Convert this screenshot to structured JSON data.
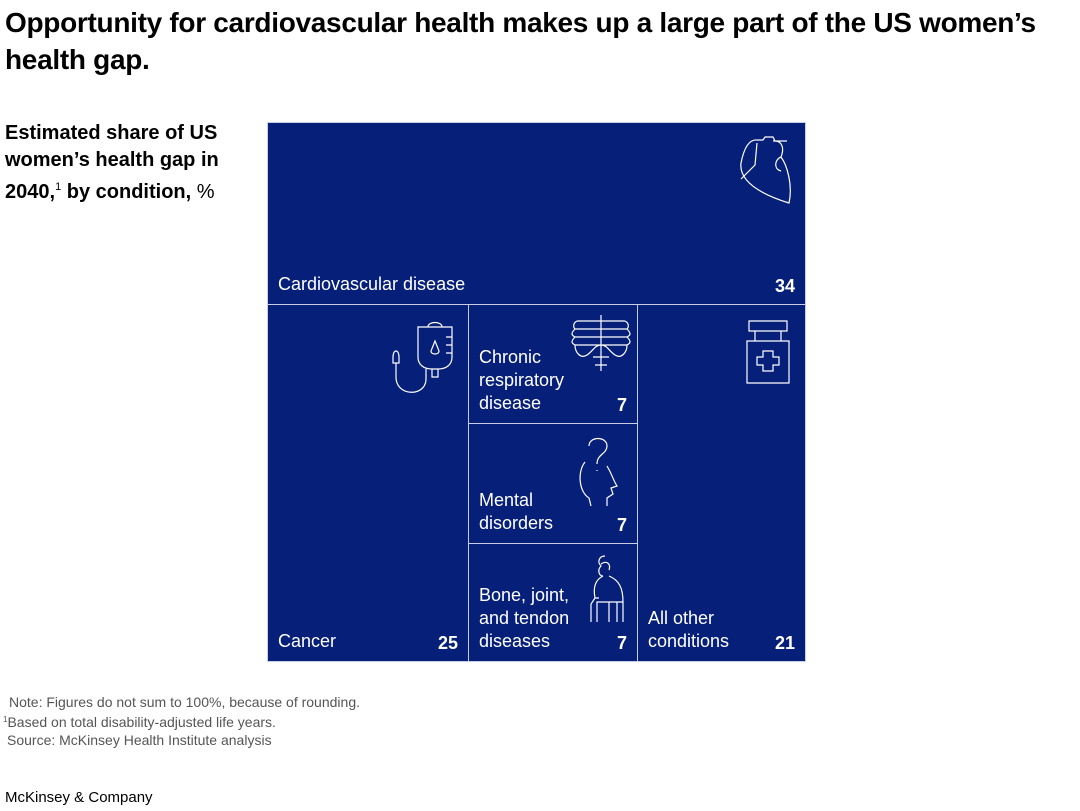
{
  "title": "Opportunity for cardiovascular health makes up a large part of the US women’s health gap.",
  "subtitle": {
    "main": "Estimated share of US women’s health gap in 2040,",
    "footnote_mark": "1",
    "rest": " by condition,",
    "unit": " %"
  },
  "chart_data": {
    "type": "treemap",
    "unit": "%",
    "items": [
      {
        "label": "Cardiovascular disease",
        "value": 34,
        "icon": "heart-icon"
      },
      {
        "label": "Cancer",
        "value": 25,
        "icon": "iv-drip-icon"
      },
      {
        "label": "Chronic respiratory disease",
        "value": 7,
        "icon": "lungs-icon"
      },
      {
        "label": "Mental disorders",
        "value": 7,
        "icon": "head-question-icon"
      },
      {
        "label": "Bone, joint, and tendon diseases",
        "value": 7,
        "icon": "elderly-person-icon"
      },
      {
        "label": "All other conditions",
        "value": 21,
        "icon": "medicine-bottle-icon"
      }
    ],
    "fill_color": "#061f79"
  },
  "notes": {
    "note": "Note: Figures do not sum to 100%, because of rounding.",
    "footnote_mark": "1",
    "footnote": "Based on total disability-adjusted life years.",
    "source": "Source: McKinsey Health Institute analysis"
  },
  "brand": "McKinsey & Company"
}
